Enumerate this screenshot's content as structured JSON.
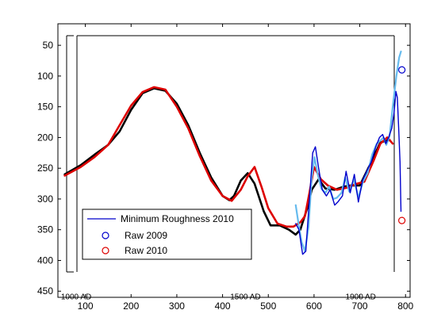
{
  "chart_data": {
    "type": "line",
    "title": "",
    "xlabel": "",
    "ylabel": "",
    "xlim": [
      40,
      810
    ],
    "ylim": [
      460,
      15
    ],
    "y_reversed": true,
    "x_ticks": [
      100,
      200,
      300,
      400,
      500,
      600,
      700,
      800
    ],
    "y_ticks": [
      50,
      100,
      150,
      200,
      250,
      300,
      350,
      400,
      450
    ],
    "annotations": [
      {
        "text": "1000 AD",
        "x": 80,
        "y": 448
      },
      {
        "text": "1500 AD",
        "x": 450,
        "y": 448
      },
      {
        "text": "1900 AD",
        "x": 702,
        "y": 448
      }
    ],
    "legend_location": "lower-left",
    "legend": [
      {
        "label": "Minimum Roughness 2010",
        "kind": "line",
        "color": "#0000cc"
      },
      {
        "label": "Raw 2009",
        "kind": "marker",
        "color": "#0000cc"
      },
      {
        "label": "Raw 2010",
        "kind": "marker",
        "color": "#dd0000"
      }
    ],
    "series": [
      {
        "color": "#000000",
        "x": [
          55,
          90,
          120,
          150,
          175,
          200,
          225,
          250,
          275,
          300,
          325,
          350,
          375,
          400,
          415,
          425,
          440,
          455,
          470,
          490,
          505,
          525,
          545,
          560,
          570,
          585,
          595,
          610,
          625,
          645,
          665,
          680,
          700,
          725,
          745,
          765
        ],
        "y": [
          260,
          245,
          228,
          212,
          190,
          155,
          128,
          120,
          124,
          145,
          180,
          225,
          265,
          295,
          302,
          295,
          270,
          258,
          275,
          320,
          343,
          343,
          350,
          358,
          350,
          315,
          285,
          268,
          283,
          285,
          280,
          278,
          278,
          240,
          208,
          204
        ]
      },
      {
        "color": "#dd0000",
        "x": [
          55,
          90,
          120,
          150,
          175,
          200,
          225,
          250,
          275,
          300,
          325,
          350,
          375,
          400,
          420,
          440,
          455,
          470,
          485,
          500,
          520,
          540,
          555,
          570,
          580,
          590,
          600,
          615,
          630,
          650,
          670,
          690,
          710,
          730,
          745,
          760,
          772
        ],
        "y": [
          262,
          248,
          232,
          212,
          180,
          148,
          126,
          118,
          122,
          150,
          185,
          230,
          270,
          295,
          303,
          285,
          263,
          248,
          280,
          315,
          340,
          345,
          345,
          338,
          328,
          290,
          248,
          268,
          278,
          285,
          282,
          276,
          272,
          238,
          210,
          200,
          210
        ]
      },
      {
        "color": "#66bbee",
        "x": [
          560,
          567,
          573,
          580,
          588,
          595,
          601,
          608,
          616,
          625,
          633,
          642,
          650,
          660,
          668,
          677,
          687,
          697,
          707,
          717,
          727,
          737,
          745,
          752,
          758,
          765,
          772,
          780,
          786,
          790
        ],
        "y": [
          310,
          345,
          370,
          385,
          345,
          265,
          232,
          260,
          283,
          290,
          280,
          300,
          298,
          290,
          265,
          288,
          268,
          298,
          272,
          258,
          228,
          210,
          205,
          200,
          212,
          198,
          150,
          100,
          70,
          60
        ]
      },
      {
        "name": "Minimum Roughness 2010",
        "color": "#0000cc",
        "x": [
          560,
          567,
          575,
          582,
          590,
          597,
          603,
          610,
          618,
          627,
          635,
          645,
          652,
          662,
          670,
          679,
          688,
          697,
          706,
          715,
          725,
          735,
          743,
          750,
          757,
          763,
          770,
          775,
          779,
          782,
          785,
          788,
          790
        ],
        "y": [
          340,
          350,
          390,
          385,
          300,
          225,
          215,
          250,
          285,
          295,
          285,
          310,
          305,
          295,
          255,
          290,
          260,
          305,
          270,
          255,
          240,
          215,
          200,
          195,
          210,
          200,
          185,
          160,
          125,
          135,
          185,
          240,
          320
        ]
      }
    ],
    "markers": [
      {
        "label": "Raw 2009",
        "x": 792,
        "y": 90,
        "color": "#0000cc"
      },
      {
        "label": "Raw 2010",
        "x": 792,
        "y": 335,
        "color": "#dd0000"
      }
    ]
  }
}
